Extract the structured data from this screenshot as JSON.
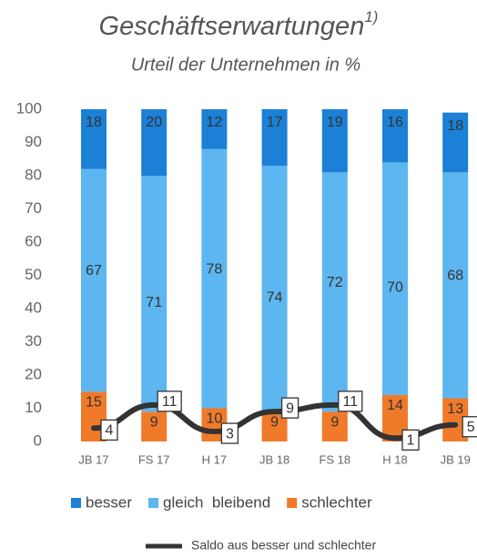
{
  "chart_data": {
    "type": "bar",
    "stacked": true,
    "title": "Geschäftserwartungen",
    "title_footnote": "1)",
    "subtitle": "Urteil der Unternehmen in %",
    "categories": [
      "JB 17",
      "FS 17",
      "H 17",
      "JB 18",
      "FS 18",
      "H 18",
      "JB 19"
    ],
    "series": [
      {
        "name": "schlechter",
        "color": "#f07a2a",
        "values": [
          15,
          9,
          10,
          9,
          9,
          14,
          13
        ]
      },
      {
        "name": "gleich  bleibend",
        "color": "#5db6ef",
        "values": [
          67,
          71,
          78,
          74,
          72,
          70,
          68
        ]
      },
      {
        "name": "besser",
        "color": "#1b80d6",
        "values": [
          18,
          20,
          12,
          17,
          19,
          16,
          18
        ]
      },
      {
        "name": "Saldo aus besser und schlechter",
        "type": "line",
        "color": "#333333",
        "values": [
          4,
          11,
          3,
          9,
          11,
          1,
          5
        ]
      }
    ],
    "ylim": [
      0,
      100
    ],
    "yticks": [
      0,
      10,
      20,
      30,
      40,
      50,
      60,
      70,
      80,
      90,
      100
    ],
    "grid": false
  }
}
